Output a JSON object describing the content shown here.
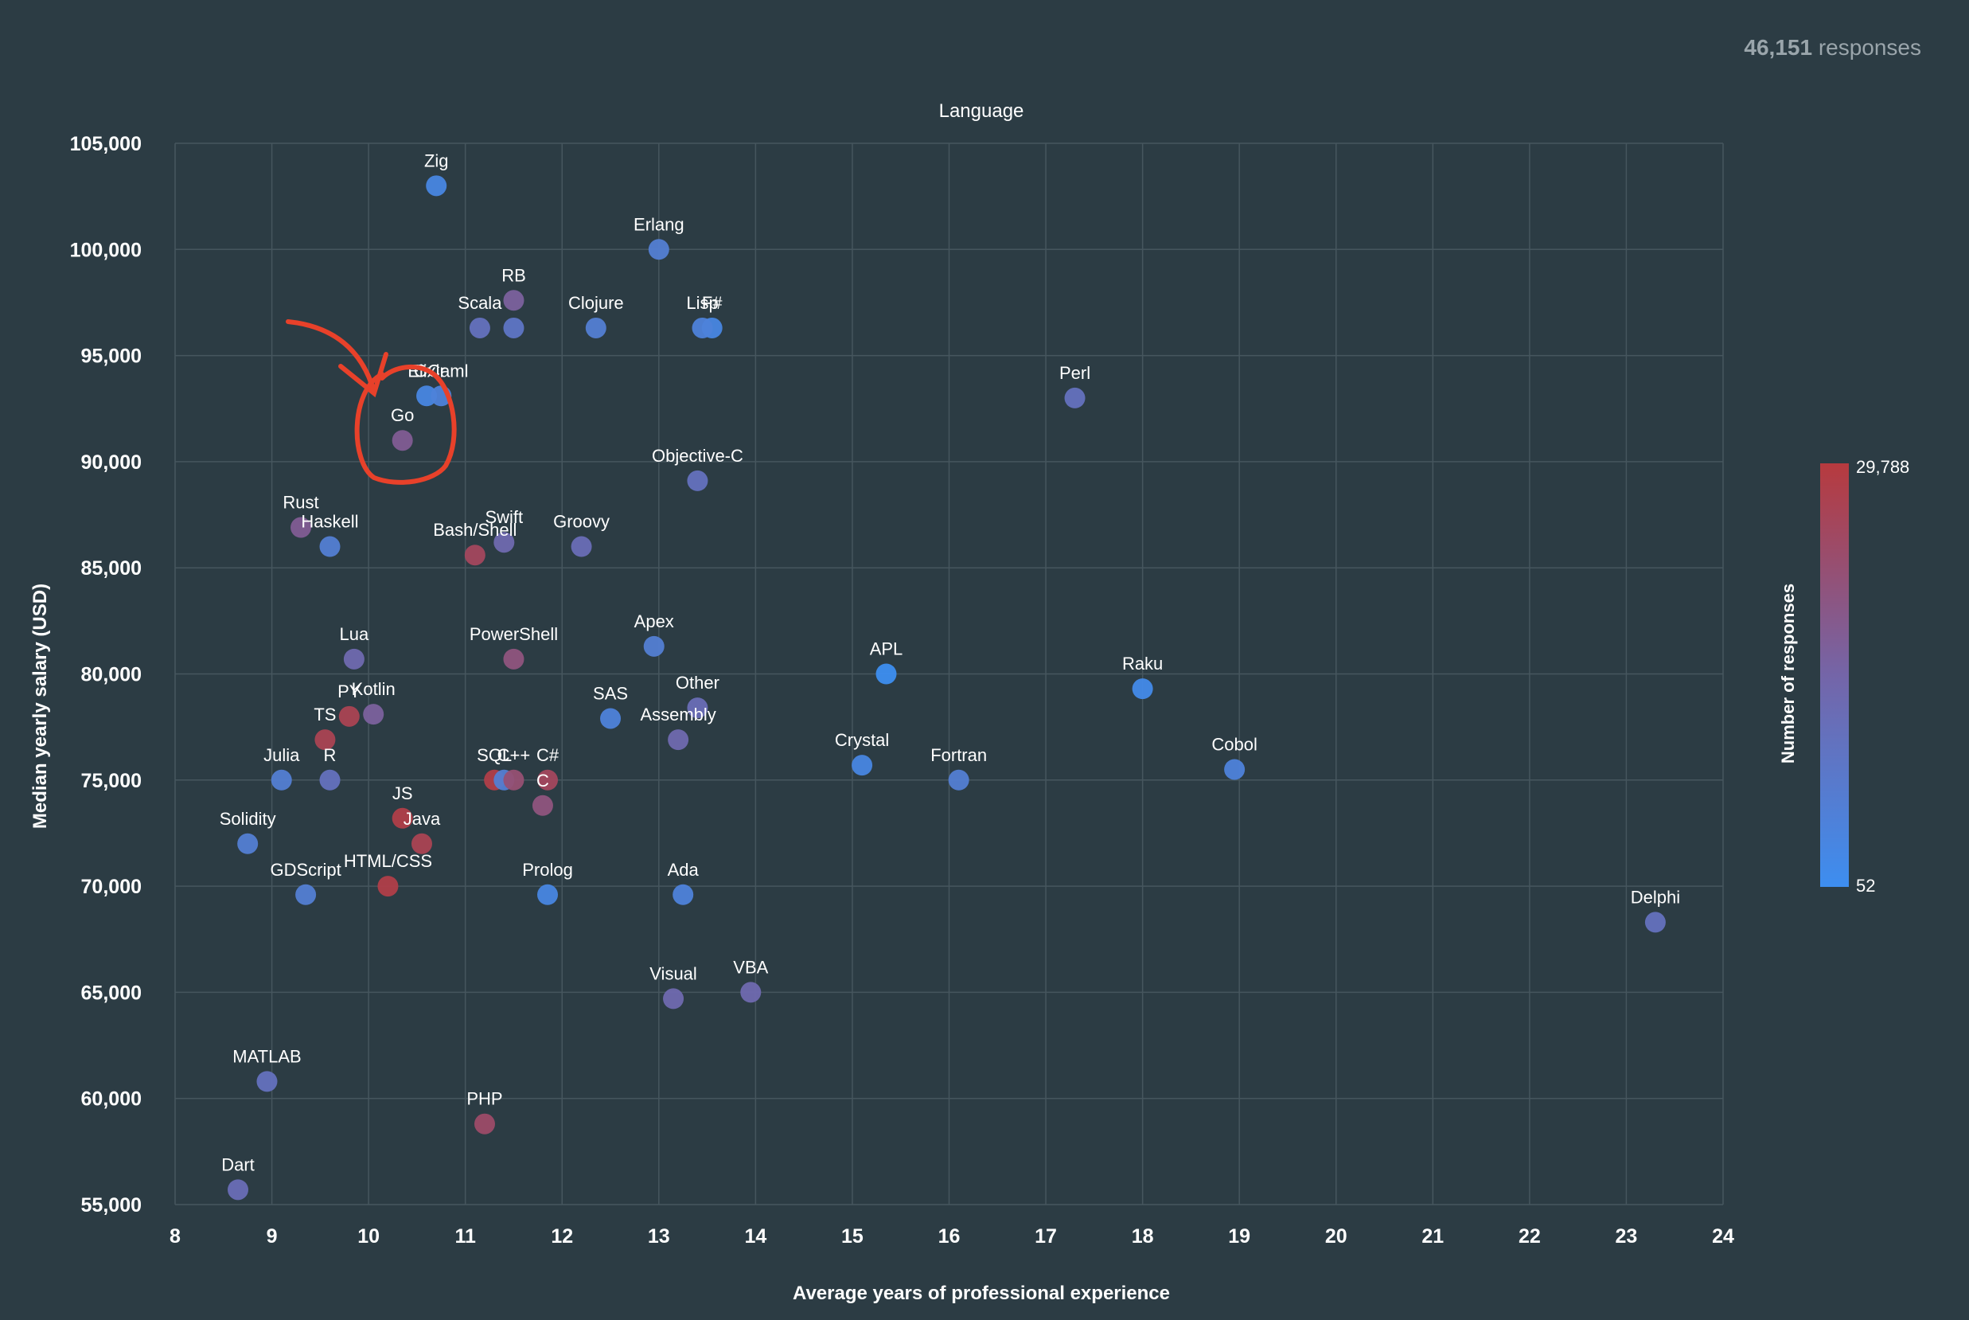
{
  "header": {
    "responses_count": "46,151",
    "responses_label": "responses"
  },
  "colors": {
    "background": "#2c3c44",
    "grid": "#46565e",
    "low": "#3d8ef0",
    "high": "#b73a3e",
    "text": "#ffffff",
    "muted": "#9aa5ab",
    "annotation": "#e8412a"
  },
  "annotation": {
    "type": "hand-drawn-circle-and-arrow",
    "target": "Go",
    "color": "#e8412a"
  },
  "chart_data": {
    "type": "scatter",
    "title": "Language",
    "xlabel": "Average years of professional experience",
    "ylabel": "Median yearly salary (USD)",
    "xlim": [
      8,
      24
    ],
    "ylim": [
      55000,
      105000
    ],
    "x_ticks": [
      8,
      9,
      10,
      11,
      12,
      13,
      14,
      15,
      16,
      17,
      18,
      19,
      20,
      21,
      22,
      23,
      24
    ],
    "y_ticks": [
      55000,
      60000,
      65000,
      70000,
      75000,
      80000,
      85000,
      90000,
      95000,
      100000,
      105000
    ],
    "x_tick_labels": [
      "8",
      "9",
      "10",
      "11",
      "12",
      "13",
      "14",
      "15",
      "16",
      "17",
      "18",
      "19",
      "20",
      "21",
      "22",
      "23",
      "24"
    ],
    "y_tick_labels": [
      "55,000",
      "60,000",
      "65,000",
      "70,000",
      "75,000",
      "80,000",
      "85,000",
      "90,000",
      "95,000",
      "100,000",
      "105,000"
    ],
    "grid": true,
    "colorbar": {
      "label": "Number of responses",
      "min": 52,
      "max": 29788,
      "min_label": "52",
      "max_label": "29,788",
      "placement": "right"
    },
    "points": [
      {
        "label": "Zig",
        "x": 10.7,
        "y": 103000,
        "c": 0.1
      },
      {
        "label": "Erlang",
        "x": 13.0,
        "y": 100000,
        "c": 0.2
      },
      {
        "label": "RB",
        "x": 11.5,
        "y": 97600,
        "c": 0.55
      },
      {
        "label": "Scala",
        "x": 11.15,
        "y": 96300,
        "c": 0.35
      },
      {
        "label": "",
        "x": 11.5,
        "y": 96300,
        "c": 0.3
      },
      {
        "label": "Clojure",
        "x": 12.35,
        "y": 96300,
        "c": 0.2
      },
      {
        "label": "F#",
        "x": 13.55,
        "y": 96300,
        "c": 0.1
      },
      {
        "label": "Lisp",
        "x": 13.45,
        "y": 96300,
        "c": 0.15
      },
      {
        "label": "Perl",
        "x": 17.3,
        "y": 93000,
        "c": 0.35
      },
      {
        "label": "Elixir",
        "x": 10.6,
        "y": 93100,
        "c": 0.1
      },
      {
        "label": "OCaml",
        "x": 10.75,
        "y": 93100,
        "c": 0.15
      },
      {
        "label": "Go",
        "x": 10.35,
        "y": 91000,
        "c": 0.6
      },
      {
        "label": "Objective-C",
        "x": 13.4,
        "y": 89100,
        "c": 0.35
      },
      {
        "label": "Rust",
        "x": 9.3,
        "y": 86900,
        "c": 0.6
      },
      {
        "label": "Haskell",
        "x": 9.6,
        "y": 86000,
        "c": 0.2
      },
      {
        "label": "Swift",
        "x": 11.4,
        "y": 86200,
        "c": 0.45
      },
      {
        "label": "Groovy",
        "x": 12.2,
        "y": 86000,
        "c": 0.4
      },
      {
        "label": "Bash/Shell",
        "x": 11.1,
        "y": 85600,
        "c": 0.85
      },
      {
        "label": "Apex",
        "x": 12.95,
        "y": 81300,
        "c": 0.2
      },
      {
        "label": "Lua",
        "x": 9.85,
        "y": 80700,
        "c": 0.45
      },
      {
        "label": "PowerShell",
        "x": 11.5,
        "y": 80700,
        "c": 0.7
      },
      {
        "label": "APL",
        "x": 15.35,
        "y": 80000,
        "c": 0.0
      },
      {
        "label": "Raku",
        "x": 18.0,
        "y": 79300,
        "c": 0.05
      },
      {
        "label": "Kotlin",
        "x": 10.05,
        "y": 78100,
        "c": 0.55
      },
      {
        "label": "PY",
        "x": 9.8,
        "y": 78000,
        "c": 0.9
      },
      {
        "label": "SAS",
        "x": 12.5,
        "y": 77900,
        "c": 0.15
      },
      {
        "label": "Other",
        "x": 13.4,
        "y": 78400,
        "c": 0.4
      },
      {
        "label": "TS",
        "x": 9.55,
        "y": 76900,
        "c": 0.9
      },
      {
        "label": "Assembly",
        "x": 13.2,
        "y": 76900,
        "c": 0.45
      },
      {
        "label": "Crystal",
        "x": 15.1,
        "y": 75700,
        "c": 0.1
      },
      {
        "label": "Cobol",
        "x": 18.95,
        "y": 75500,
        "c": 0.15
      },
      {
        "label": "Julia",
        "x": 9.1,
        "y": 75000,
        "c": 0.2
      },
      {
        "label": "R",
        "x": 9.6,
        "y": 75000,
        "c": 0.35
      },
      {
        "label": "SQL",
        "x": 11.3,
        "y": 75000,
        "c": 0.95
      },
      {
        "label": "",
        "x": 11.4,
        "y": 75000,
        "c": 0.2
      },
      {
        "label": "C++",
        "x": 11.5,
        "y": 75000,
        "c": 0.75
      },
      {
        "label": "C#",
        "x": 11.85,
        "y": 75000,
        "c": 0.85
      },
      {
        "label": "Fortran",
        "x": 16.1,
        "y": 75000,
        "c": 0.2
      },
      {
        "label": "C",
        "x": 11.8,
        "y": 73800,
        "c": 0.7
      },
      {
        "label": "JS",
        "x": 10.35,
        "y": 73200,
        "c": 0.95
      },
      {
        "label": "Solidity",
        "x": 8.75,
        "y": 72000,
        "c": 0.2
      },
      {
        "label": "Java",
        "x": 10.55,
        "y": 72000,
        "c": 0.9
      },
      {
        "label": "HTML/CSS",
        "x": 10.2,
        "y": 70000,
        "c": 0.95
      },
      {
        "label": "GDScript",
        "x": 9.35,
        "y": 69600,
        "c": 0.2
      },
      {
        "label": "Prolog",
        "x": 11.85,
        "y": 69600,
        "c": 0.1
      },
      {
        "label": "Ada",
        "x": 13.25,
        "y": 69600,
        "c": 0.15
      },
      {
        "label": "Delphi",
        "x": 23.3,
        "y": 68300,
        "c": 0.35
      },
      {
        "label": "VBA",
        "x": 13.95,
        "y": 65000,
        "c": 0.45
      },
      {
        "label": "Visual",
        "x": 13.15,
        "y": 64700,
        "c": 0.45
      },
      {
        "label": "MATLAB",
        "x": 8.95,
        "y": 60800,
        "c": 0.35
      },
      {
        "label": "PHP",
        "x": 11.2,
        "y": 58800,
        "c": 0.8
      },
      {
        "label": "Dart",
        "x": 8.65,
        "y": 55700,
        "c": 0.4
      }
    ]
  }
}
